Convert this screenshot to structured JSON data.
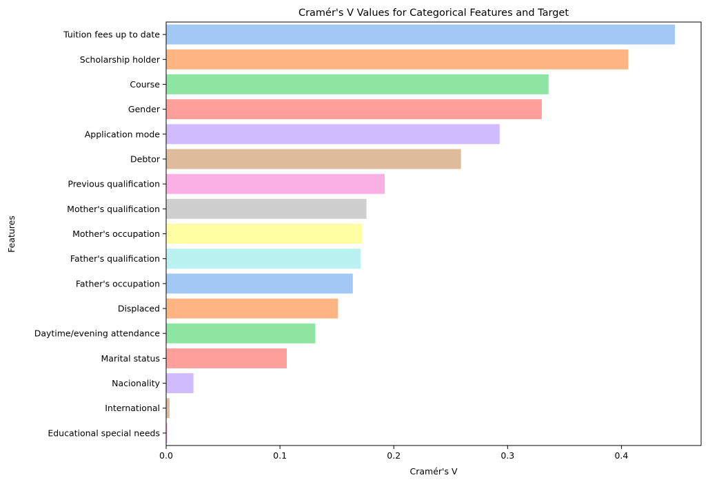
{
  "chart_data": {
    "type": "bar",
    "orientation": "horizontal",
    "title": "Cramér's V Values for Categorical Features and Target",
    "xlabel": "Cramér's V",
    "ylabel": "Features",
    "xlim": [
      0,
      0.47
    ],
    "xticks": [
      0,
      0.1,
      0.2,
      0.3,
      0.4
    ],
    "xtick_labels": [
      "0.0",
      "0.1",
      "0.2",
      "0.3",
      "0.4"
    ],
    "grid": false,
    "legend": "none",
    "categories": [
      "Tuition fees up to date",
      "Scholarship holder",
      "Course",
      "Gender",
      "Application mode",
      "Debtor",
      "Previous qualification",
      "Mother's qualification",
      "Mother's occupation",
      "Father's qualification",
      "Father's occupation",
      "Displaced",
      "Daytime/evening attendance",
      "Marital status",
      "Nacionality",
      "International",
      "Educational special needs"
    ],
    "values": [
      0.447,
      0.406,
      0.336,
      0.33,
      0.293,
      0.259,
      0.192,
      0.176,
      0.172,
      0.171,
      0.164,
      0.151,
      0.131,
      0.106,
      0.024,
      0.003,
      0.001
    ],
    "colors": [
      "#a1c9f4",
      "#ffb482",
      "#8de5a1",
      "#ff9f9b",
      "#d0bbff",
      "#debb9b",
      "#fab0e4",
      "#cfcfcf",
      "#fffea3",
      "#b9f2f0",
      "#a1c9f4",
      "#ffb482",
      "#8de5a1",
      "#ff9f9b",
      "#d0bbff",
      "#debb9b",
      "#fab0e4"
    ]
  }
}
